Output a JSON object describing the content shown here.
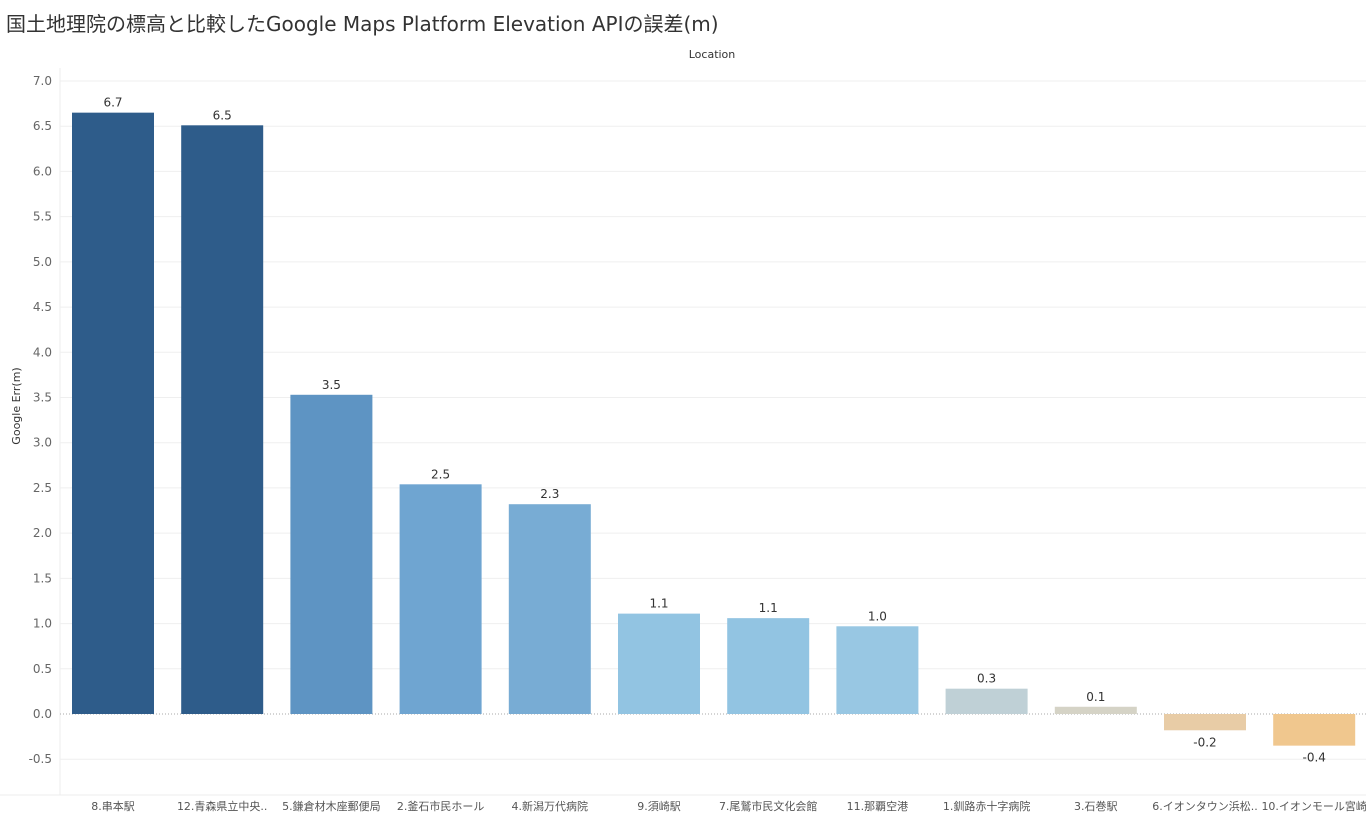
{
  "title": "国土地理院の標高と比較したGoogle Maps Platform Elevation APIの誤差(m)",
  "chart_data": {
    "type": "bar",
    "header_label": "Location",
    "ylabel": "Google Err(m)",
    "ylim": [
      -0.9,
      7.4
    ],
    "yticks": [
      -0.5,
      0.0,
      0.5,
      1.0,
      1.5,
      2.0,
      2.5,
      3.0,
      3.5,
      4.0,
      4.5,
      5.0,
      5.5,
      6.0,
      6.5,
      7.0
    ],
    "ytick_labels": [
      "-0.5",
      "0.0",
      "0.5",
      "1.0",
      "1.5",
      "2.0",
      "2.5",
      "3.0",
      "3.5",
      "4.0",
      "4.5",
      "5.0",
      "5.5",
      "6.0",
      "6.5",
      "7.0"
    ],
    "grid": true,
    "categories": [
      "8.串本駅",
      "12.青森県立中央..",
      "5.鎌倉材木座郵便局",
      "2.釜石市民ホール",
      "4.新潟万代病院",
      "9.須崎駅",
      "7.尾鷲市民文化会館",
      "11.那覇空港",
      "1.釧路赤十字病院",
      "3.石巻駅",
      "6.イオンタウン浜松..",
      "10.イオンモール宮崎"
    ],
    "values": [
      6.65,
      6.51,
      3.53,
      2.54,
      2.32,
      1.11,
      1.06,
      0.97,
      0.28,
      0.08,
      -0.18,
      -0.35
    ],
    "value_labels": [
      "6.7",
      "6.5",
      "3.5",
      "2.5",
      "2.3",
      "1.1",
      "1.1",
      "1.0",
      "0.3",
      "0.1",
      "-0.2",
      "-0.4"
    ],
    "colors": [
      "#2e5c8a",
      "#2e5c8a",
      "#5e94c3",
      "#6fa5d1",
      "#78acd4",
      "#92c4e2",
      "#92c4e2",
      "#98c7e3",
      "#bfd0d6",
      "#d5d3c6",
      "#e8cca6",
      "#f0c78e"
    ]
  }
}
